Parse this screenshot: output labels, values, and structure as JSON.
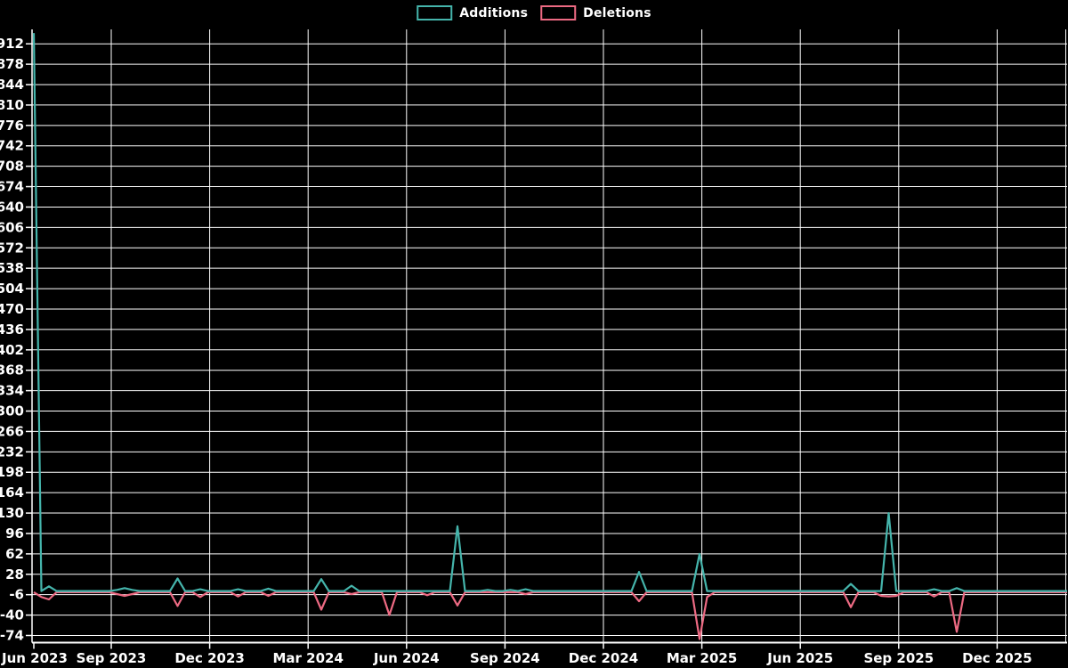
{
  "page": {
    "background": "#000000",
    "text_color": "#ffffff",
    "grid_color": "#ffffff"
  },
  "legend": {
    "items": [
      {
        "label": "Additions",
        "color": "#45b5ac"
      },
      {
        "label": "Deletions",
        "color": "#ed6a83"
      }
    ]
  },
  "chart_data": {
    "type": "line",
    "title": "",
    "legend_position": "top-center",
    "grid": true,
    "background": "#000000",
    "y_ticks": [
      912,
      878,
      844,
      810,
      776,
      742,
      708,
      674,
      640,
      606,
      572,
      538,
      504,
      470,
      436,
      402,
      368,
      334,
      300,
      266,
      232,
      198,
      164,
      130,
      96,
      62,
      28,
      -6,
      -40,
      -74
    ],
    "y_axis_range_approx": [
      -87,
      936
    ],
    "x_tick_labels": [
      "Jun 2023",
      "Sep 2023",
      "Dec 2023",
      "Mar 2024",
      "Jun 2024",
      "Sep 2024",
      "Dec 2024",
      "Mar 2025",
      "Jun 2025",
      "Sep 2025",
      "Dec 2025"
    ],
    "x_unit": "week (weekly points from Jun 2023 to Dec 2025)",
    "series": [
      {
        "name": "Additions",
        "color": "#45b5ac",
        "values": [
          930,
          0,
          8,
          0,
          0,
          0,
          0,
          0,
          0,
          0,
          0,
          2,
          5,
          2,
          0,
          0,
          0,
          0,
          0,
          21,
          0,
          0,
          3,
          0,
          0,
          0,
          0,
          3,
          0,
          0,
          0,
          4,
          0,
          0,
          0,
          0,
          0,
          0,
          20,
          0,
          0,
          0,
          9,
          0,
          0,
          0,
          0,
          0,
          0,
          0,
          0,
          0,
          0,
          0,
          0,
          0,
          108,
          0,
          0,
          0,
          2,
          0,
          0,
          2,
          0,
          3,
          0,
          0,
          0,
          0,
          0,
          0,
          0,
          0,
          0,
          0,
          0,
          0,
          0,
          0,
          32,
          0,
          0,
          0,
          0,
          0,
          0,
          0,
          62,
          0,
          0,
          0,
          0,
          0,
          0,
          0,
          0,
          0,
          0,
          0,
          0,
          0,
          0,
          0,
          0,
          0,
          0,
          0,
          12,
          0,
          0,
          0,
          0,
          130,
          0,
          0,
          0,
          0,
          0,
          3,
          0,
          0,
          5,
          0,
          0,
          0,
          0,
          0,
          0,
          0,
          0,
          0,
          0,
          0,
          0,
          0,
          0,
          0
        ]
      },
      {
        "name": "Deletions",
        "color": "#ed6a83",
        "values": [
          0,
          -8,
          -12,
          0,
          0,
          0,
          0,
          0,
          0,
          0,
          0,
          -3,
          -6,
          -3,
          0,
          0,
          0,
          0,
          0,
          -23,
          0,
          0,
          -8,
          0,
          0,
          0,
          0,
          -7,
          0,
          0,
          0,
          -6,
          0,
          0,
          0,
          0,
          0,
          0,
          -29,
          0,
          0,
          0,
          -3,
          0,
          0,
          0,
          0,
          -38,
          0,
          0,
          0,
          0,
          -5,
          0,
          0,
          0,
          -22,
          0,
          0,
          0,
          0,
          0,
          0,
          0,
          0,
          -3,
          0,
          0,
          0,
          0,
          0,
          0,
          0,
          0,
          0,
          0,
          0,
          0,
          0,
          0,
          -15,
          0,
          0,
          0,
          0,
          0,
          0,
          0,
          -78,
          -8,
          0,
          0,
          0,
          0,
          0,
          0,
          0,
          0,
          0,
          0,
          0,
          0,
          0,
          0,
          0,
          0,
          0,
          0,
          -25,
          0,
          0,
          0,
          -6,
          -7,
          -6,
          0,
          0,
          0,
          0,
          -7,
          0,
          0,
          -66,
          0,
          0,
          0,
          0,
          0,
          0,
          0,
          0,
          0,
          0,
          0,
          0,
          0,
          0,
          0
        ]
      }
    ]
  }
}
